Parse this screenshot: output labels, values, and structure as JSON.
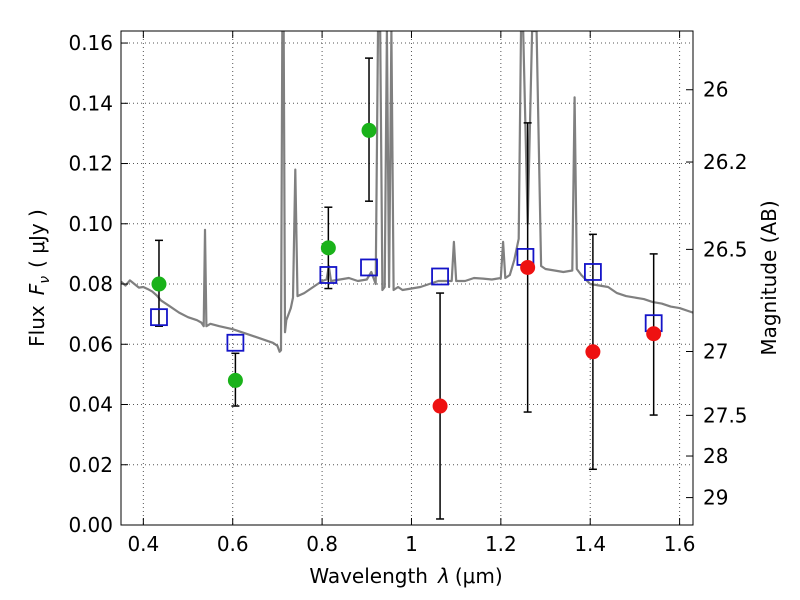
{
  "chart_data": {
    "type": "scatter",
    "xlabel_prefix": "Wavelength",
    "xlabel_symbol": "λ",
    "xlabel_unit": "(μm)",
    "ylabel_prefix": "Flux",
    "ylabel_symbol": "F",
    "ylabel_sub": "ν",
    "ylabel_unit": "( μJy )",
    "y2label": "Magnitude (AB)",
    "xlim": [
      0.35,
      1.63
    ],
    "ylim": [
      0.0,
      0.164
    ],
    "grid": true,
    "x_ticks": [
      0.4,
      0.6,
      0.8,
      1.0,
      1.2,
      1.4,
      1.6
    ],
    "x_tick_labels": [
      "0.4",
      "0.6",
      "0.8",
      "1",
      "1.2",
      "1.4",
      "1.6"
    ],
    "y_ticks": [
      0.0,
      0.02,
      0.04,
      0.06,
      0.08,
      0.1,
      0.12,
      0.14,
      0.16
    ],
    "y_tick_labels": [
      "0.00",
      "0.02",
      "0.04",
      "0.06",
      "0.08",
      "0.10",
      "0.12",
      "0.14",
      "0.16"
    ],
    "y2_ticks": [
      {
        "flux": 0.1445,
        "label": "26"
      },
      {
        "flux": 0.1205,
        "label": "26.2"
      },
      {
        "flux": 0.0915,
        "label": "26.5"
      },
      {
        "flux": 0.0576,
        "label": "27"
      },
      {
        "flux": 0.0364,
        "label": "27.5"
      },
      {
        "flux": 0.0229,
        "label": "28"
      },
      {
        "flux": 0.0091,
        "label": "29"
      }
    ],
    "colors": {
      "spectrum": "#808080",
      "detections": "#1ab21a",
      "upper": "#ee1111",
      "model": "#1414c8",
      "errorbar": "#000000",
      "grid": "#555555"
    },
    "series": [
      {
        "kind": "spectrum",
        "points": [
          [
            0.35,
            0.0808
          ],
          [
            0.36,
            0.0795
          ],
          [
            0.37,
            0.0812
          ],
          [
            0.38,
            0.08
          ],
          [
            0.39,
            0.0788
          ],
          [
            0.4,
            0.079
          ],
          [
            0.41,
            0.0783
          ],
          [
            0.42,
            0.0775
          ],
          [
            0.43,
            0.0762
          ],
          [
            0.44,
            0.0745
          ],
          [
            0.46,
            0.0725
          ],
          [
            0.48,
            0.0705
          ],
          [
            0.5,
            0.069
          ],
          [
            0.52,
            0.068
          ],
          [
            0.53,
            0.0672
          ],
          [
            0.535,
            0.066
          ],
          [
            0.538,
            0.098
          ],
          [
            0.541,
            0.066
          ],
          [
            0.55,
            0.0668
          ],
          [
            0.57,
            0.066
          ],
          [
            0.6,
            0.065
          ],
          [
            0.62,
            0.064
          ],
          [
            0.64,
            0.063
          ],
          [
            0.66,
            0.062
          ],
          [
            0.68,
            0.061
          ],
          [
            0.69,
            0.0605
          ],
          [
            0.7,
            0.0595
          ],
          [
            0.705,
            0.0575
          ],
          [
            0.708,
            0.058
          ],
          [
            0.711,
            0.164
          ],
          [
            0.714,
            0.164
          ],
          [
            0.717,
            0.064
          ],
          [
            0.72,
            0.068
          ],
          [
            0.725,
            0.07
          ],
          [
            0.73,
            0.072
          ],
          [
            0.735,
            0.0755
          ],
          [
            0.74,
            0.118
          ],
          [
            0.745,
            0.076
          ],
          [
            0.76,
            0.077
          ],
          [
            0.78,
            0.079
          ],
          [
            0.8,
            0.081
          ],
          [
            0.81,
            0.0815
          ],
          [
            0.815,
            0.086
          ],
          [
            0.82,
            0.081
          ],
          [
            0.84,
            0.0815
          ],
          [
            0.86,
            0.082
          ],
          [
            0.88,
            0.081
          ],
          [
            0.9,
            0.0815
          ],
          [
            0.91,
            0.084
          ],
          [
            0.92,
            0.08
          ],
          [
            0.925,
            0.164
          ],
          [
            0.93,
            0.164
          ],
          [
            0.935,
            0.078
          ],
          [
            0.94,
            0.079
          ],
          [
            0.945,
            0.164
          ],
          [
            0.95,
            0.079
          ],
          [
            0.955,
            0.164
          ],
          [
            0.96,
            0.078
          ],
          [
            0.97,
            0.079
          ],
          [
            0.98,
            0.078
          ],
          [
            1.0,
            0.0785
          ],
          [
            1.02,
            0.079
          ],
          [
            1.04,
            0.08
          ],
          [
            1.06,
            0.081
          ],
          [
            1.08,
            0.081
          ],
          [
            1.09,
            0.081
          ],
          [
            1.095,
            0.094
          ],
          [
            1.1,
            0.081
          ],
          [
            1.12,
            0.081
          ],
          [
            1.14,
            0.082
          ],
          [
            1.16,
            0.0818
          ],
          [
            1.18,
            0.0815
          ],
          [
            1.2,
            0.082
          ],
          [
            1.205,
            0.094
          ],
          [
            1.21,
            0.082
          ],
          [
            1.22,
            0.083
          ],
          [
            1.23,
            0.088
          ],
          [
            1.24,
            0.095
          ],
          [
            1.245,
            0.164
          ],
          [
            1.25,
            0.164
          ],
          [
            1.26,
            0.1
          ],
          [
            1.27,
            0.164
          ],
          [
            1.28,
            0.164
          ],
          [
            1.29,
            0.086
          ],
          [
            1.3,
            0.085
          ],
          [
            1.32,
            0.0845
          ],
          [
            1.34,
            0.084
          ],
          [
            1.36,
            0.0845
          ],
          [
            1.365,
            0.142
          ],
          [
            1.37,
            0.085
          ],
          [
            1.38,
            0.083
          ],
          [
            1.4,
            0.08
          ],
          [
            1.42,
            0.0795
          ],
          [
            1.44,
            0.079
          ],
          [
            1.46,
            0.077
          ],
          [
            1.48,
            0.076
          ],
          [
            1.5,
            0.0755
          ],
          [
            1.52,
            0.075
          ],
          [
            1.54,
            0.074
          ],
          [
            1.56,
            0.0735
          ],
          [
            1.58,
            0.0725
          ],
          [
            1.6,
            0.072
          ],
          [
            1.63,
            0.0705
          ]
        ]
      },
      {
        "kind": "detections",
        "points": [
          {
            "x": 0.435,
            "y": 0.08,
            "lo": 0.066,
            "hi": 0.0945
          },
          {
            "x": 0.606,
            "y": 0.048,
            "lo": 0.0395,
            "hi": 0.057
          },
          {
            "x": 0.814,
            "y": 0.092,
            "lo": 0.0785,
            "hi": 0.1055
          },
          {
            "x": 0.905,
            "y": 0.131,
            "lo": 0.1075,
            "hi": 0.155
          }
        ]
      },
      {
        "kind": "upper",
        "points": [
          {
            "x": 1.064,
            "y": 0.0395,
            "lo": 0.002,
            "hi": 0.077
          },
          {
            "x": 1.26,
            "y": 0.0855,
            "lo": 0.0375,
            "hi": 0.1335
          },
          {
            "x": 1.406,
            "y": 0.0575,
            "lo": 0.0185,
            "hi": 0.0965
          },
          {
            "x": 1.542,
            "y": 0.0635,
            "lo": 0.0365,
            "hi": 0.09
          }
        ]
      },
      {
        "kind": "model",
        "points": [
          {
            "x": 0.435,
            "y": 0.069
          },
          {
            "x": 0.606,
            "y": 0.0605
          },
          {
            "x": 0.814,
            "y": 0.083
          },
          {
            "x": 0.905,
            "y": 0.0855
          },
          {
            "x": 1.064,
            "y": 0.0825
          },
          {
            "x": 1.255,
            "y": 0.089
          },
          {
            "x": 1.406,
            "y": 0.084
          },
          {
            "x": 1.542,
            "y": 0.067
          }
        ]
      }
    ]
  }
}
